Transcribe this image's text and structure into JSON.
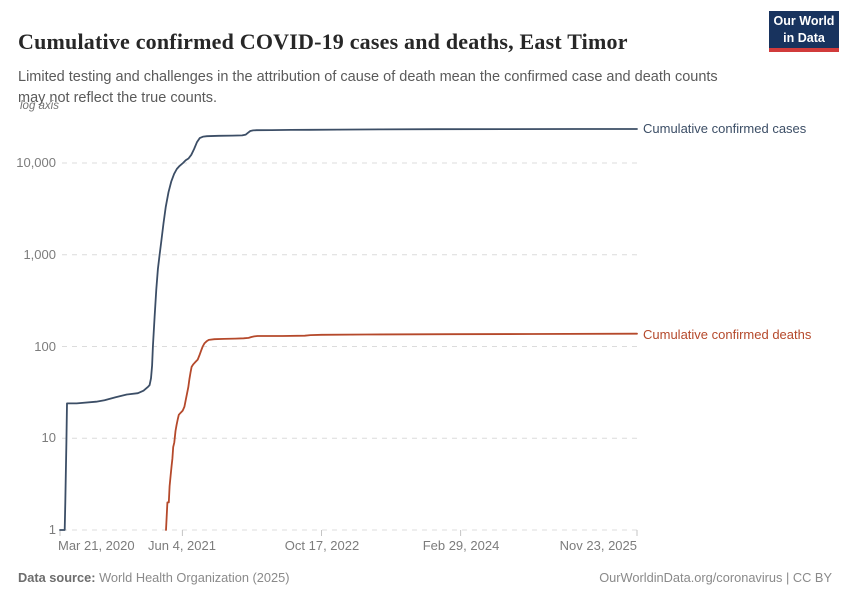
{
  "header": {
    "title": "Cumulative confirmed COVID-19 cases and deaths, East Timor",
    "subtitle": "Limited testing and challenges in the attribution of cause of death mean the confirmed case and death counts may not reflect the true counts.",
    "logo": {
      "line1": "Our World",
      "line2": "in Data"
    }
  },
  "colors": {
    "cases": "#3c4e66",
    "deaths": "#b5492b",
    "grid": "#dcdcdc",
    "logo_bg": "#18335e",
    "logo_red": "#d13b3b"
  },
  "footer": {
    "source_label": "Data source:",
    "source_value": " World Health Organization (2025)",
    "credit": "OurWorldinData.org/coronavirus | CC BY"
  },
  "chart_data": {
    "type": "line",
    "title": "Cumulative confirmed COVID-19 cases and deaths, East Timor",
    "log_axis_label": "log axis",
    "legend_position": "right-edge-labels",
    "grid": "dashed-horizontal",
    "x_axis": {
      "unit": "days since 2020-03-21",
      "range_days": [
        0,
        2074
      ],
      "tick_days": [
        0,
        440,
        940,
        1440,
        2074
      ],
      "tick_labels": [
        "Mar 21, 2020",
        "Jun 4, 2021",
        "Oct 17, 2022",
        "Feb 29, 2024",
        "Nov 23, 2025"
      ]
    },
    "y_axis": {
      "scale": "log",
      "ticks": [
        1,
        10,
        100,
        1000,
        10000
      ],
      "tick_labels": [
        "1",
        "10",
        "100",
        "1,000",
        "10,000"
      ],
      "range": [
        1,
        30000
      ]
    },
    "series": [
      {
        "name": "Cumulative confirmed cases",
        "color": "#3c4e66",
        "points": [
          [
            0,
            1
          ],
          [
            17,
            1
          ],
          [
            19,
            2
          ],
          [
            21,
            4
          ],
          [
            23,
            9
          ],
          [
            25,
            24
          ],
          [
            60,
            24
          ],
          [
            130,
            25
          ],
          [
            160,
            26
          ],
          [
            200,
            28
          ],
          [
            240,
            30
          ],
          [
            280,
            31
          ],
          [
            300,
            33
          ],
          [
            315,
            36
          ],
          [
            322,
            38
          ],
          [
            327,
            45
          ],
          [
            331,
            62
          ],
          [
            334,
            100
          ],
          [
            340,
            210
          ],
          [
            346,
            420
          ],
          [
            352,
            700
          ],
          [
            358,
            1000
          ],
          [
            364,
            1400
          ],
          [
            372,
            2200
          ],
          [
            380,
            3300
          ],
          [
            390,
            4800
          ],
          [
            400,
            6300
          ],
          [
            410,
            7600
          ],
          [
            420,
            8600
          ],
          [
            430,
            9300
          ],
          [
            442,
            10000
          ],
          [
            452,
            10700
          ],
          [
            462,
            11200
          ],
          [
            472,
            12300
          ],
          [
            482,
            14200
          ],
          [
            492,
            16800
          ],
          [
            502,
            18700
          ],
          [
            515,
            19400
          ],
          [
            528,
            19600
          ],
          [
            570,
            19800
          ],
          [
            620,
            19900
          ],
          [
            655,
            20000
          ],
          [
            668,
            20400
          ],
          [
            676,
            21400
          ],
          [
            684,
            22300
          ],
          [
            694,
            22650
          ],
          [
            706,
            22800
          ],
          [
            760,
            22860
          ],
          [
            830,
            22950
          ],
          [
            900,
            23000
          ],
          [
            1000,
            23100
          ],
          [
            1150,
            23250
          ],
          [
            1350,
            23350
          ],
          [
            1600,
            23420
          ],
          [
            1850,
            23450
          ],
          [
            2074,
            23460
          ]
        ]
      },
      {
        "name": "Cumulative confirmed deaths",
        "color": "#b5492b",
        "points": [
          [
            381,
            1
          ],
          [
            386,
            2
          ],
          [
            391,
            2
          ],
          [
            394,
            3
          ],
          [
            398,
            4
          ],
          [
            401,
            5
          ],
          [
            404,
            6
          ],
          [
            407,
            8
          ],
          [
            411,
            9
          ],
          [
            415,
            12
          ],
          [
            419,
            14
          ],
          [
            423,
            16
          ],
          [
            427,
            18
          ],
          [
            434,
            19
          ],
          [
            441,
            20
          ],
          [
            447,
            22
          ],
          [
            452,
            26
          ],
          [
            457,
            31
          ],
          [
            461,
            36
          ],
          [
            465,
            44
          ],
          [
            469,
            52
          ],
          [
            473,
            60
          ],
          [
            479,
            64
          ],
          [
            487,
            68
          ],
          [
            495,
            72
          ],
          [
            501,
            80
          ],
          [
            507,
            90
          ],
          [
            513,
            100
          ],
          [
            519,
            108
          ],
          [
            527,
            114
          ],
          [
            535,
            118
          ],
          [
            555,
            120
          ],
          [
            590,
            121
          ],
          [
            630,
            122
          ],
          [
            660,
            123
          ],
          [
            678,
            124
          ],
          [
            688,
            127
          ],
          [
            698,
            129
          ],
          [
            710,
            130
          ],
          [
            800,
            130
          ],
          [
            880,
            131
          ],
          [
            900,
            133
          ],
          [
            940,
            134
          ],
          [
            1100,
            135
          ],
          [
            1400,
            136
          ],
          [
            1700,
            137
          ],
          [
            2074,
            138
          ]
        ]
      }
    ]
  }
}
